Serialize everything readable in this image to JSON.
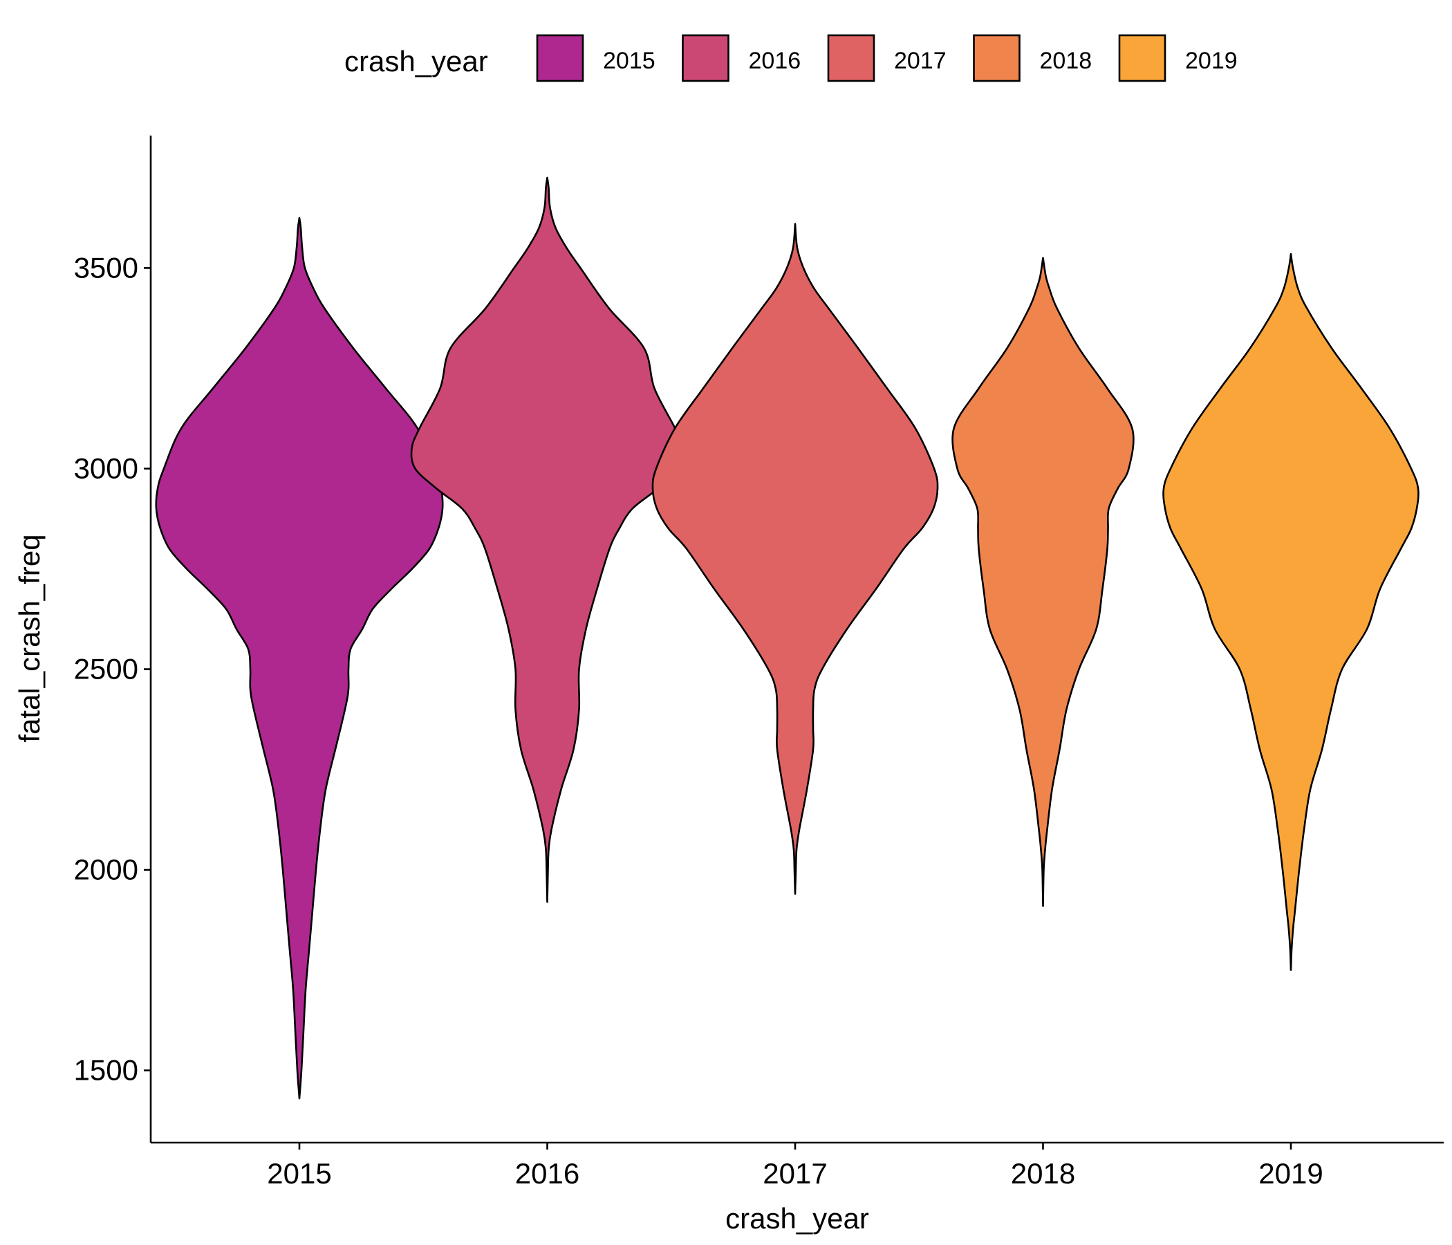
{
  "chart_data": {
    "type": "violin",
    "xlabel": "crash_year",
    "ylabel": "fatal_crash_freq",
    "categories": [
      "2015",
      "2016",
      "2017",
      "2018",
      "2019"
    ],
    "ylim": [
      1320,
      3830
    ],
    "yticks": [
      1500,
      2000,
      2500,
      3000,
      3500
    ],
    "grid": false,
    "legend": {
      "title": "crash_year",
      "position": "top",
      "entries": [
        "2015",
        "2016",
        "2017",
        "2018",
        "2019"
      ]
    },
    "colors": [
      "#ae2890",
      "#cb4875",
      "#e06363",
      "#ef844d",
      "#f9a539"
    ],
    "series": [
      {
        "name": "2015",
        "min": 1430,
        "max": 3625,
        "profile": [
          [
            3625,
            0
          ],
          [
            3600,
            2
          ],
          [
            3550,
            4
          ],
          [
            3500,
            8
          ],
          [
            3450,
            20
          ],
          [
            3400,
            36
          ],
          [
            3300,
            78
          ],
          [
            3200,
            125
          ],
          [
            3100,
            171
          ],
          [
            3000,
            196
          ],
          [
            2950,
            205
          ],
          [
            2900,
            207
          ],
          [
            2850,
            201
          ],
          [
            2800,
            188
          ],
          [
            2750,
            163
          ],
          [
            2700,
            133
          ],
          [
            2650,
            106
          ],
          [
            2600,
            91
          ],
          [
            2550,
            74
          ],
          [
            2500,
            71
          ],
          [
            2450,
            71
          ],
          [
            2400,
            66
          ],
          [
            2300,
            52
          ],
          [
            2200,
            38
          ],
          [
            2100,
            30
          ],
          [
            2000,
            24
          ],
          [
            1900,
            19
          ],
          [
            1800,
            14
          ],
          [
            1700,
            9
          ],
          [
            1600,
            6
          ],
          [
            1500,
            3
          ],
          [
            1430,
            0
          ]
        ]
      },
      {
        "name": "2016",
        "min": 1920,
        "max": 3725,
        "profile": [
          [
            3725,
            0
          ],
          [
            3700,
            2
          ],
          [
            3650,
            4
          ],
          [
            3600,
            12
          ],
          [
            3550,
            28
          ],
          [
            3500,
            48
          ],
          [
            3400,
            89
          ],
          [
            3300,
            140
          ],
          [
            3200,
            155
          ],
          [
            3100,
            185
          ],
          [
            3050,
            196
          ],
          [
            3000,
            191
          ],
          [
            2950,
            160
          ],
          [
            2900,
            123
          ],
          [
            2850,
            104
          ],
          [
            2800,
            90
          ],
          [
            2700,
            72
          ],
          [
            2600,
            56
          ],
          [
            2500,
            46
          ],
          [
            2400,
            46
          ],
          [
            2300,
            38
          ],
          [
            2200,
            20
          ],
          [
            2100,
            6
          ],
          [
            2050,
            2
          ],
          [
            2000,
            1
          ],
          [
            1920,
            0
          ]
        ]
      },
      {
        "name": "2017",
        "min": 1940,
        "max": 3610,
        "profile": [
          [
            3610,
            0
          ],
          [
            3550,
            3
          ],
          [
            3500,
            12
          ],
          [
            3450,
            27
          ],
          [
            3400,
            48
          ],
          [
            3300,
            91
          ],
          [
            3200,
            133
          ],
          [
            3100,
            174
          ],
          [
            3000,
            201
          ],
          [
            2950,
            206
          ],
          [
            2900,
            200
          ],
          [
            2850,
            183
          ],
          [
            2800,
            157
          ],
          [
            2700,
            117
          ],
          [
            2600,
            75
          ],
          [
            2500,
            39
          ],
          [
            2450,
            28
          ],
          [
            2400,
            26
          ],
          [
            2350,
            26
          ],
          [
            2300,
            26
          ],
          [
            2200,
            17
          ],
          [
            2100,
            6
          ],
          [
            2050,
            2
          ],
          [
            2000,
            1
          ],
          [
            1940,
            0
          ]
        ]
      },
      {
        "name": "2018",
        "min": 1910,
        "max": 3525,
        "profile": [
          [
            3525,
            0
          ],
          [
            3480,
            4
          ],
          [
            3450,
            9
          ],
          [
            3400,
            20
          ],
          [
            3300,
            52
          ],
          [
            3200,
            93
          ],
          [
            3100,
            129
          ],
          [
            3000,
            124
          ],
          [
            2950,
            108
          ],
          [
            2900,
            95
          ],
          [
            2850,
            94
          ],
          [
            2800,
            93
          ],
          [
            2700,
            86
          ],
          [
            2600,
            77
          ],
          [
            2500,
            52
          ],
          [
            2400,
            34
          ],
          [
            2300,
            24
          ],
          [
            2200,
            13
          ],
          [
            2100,
            6
          ],
          [
            2050,
            3
          ],
          [
            2000,
            1
          ],
          [
            1910,
            0
          ]
        ]
      },
      {
        "name": "2019",
        "min": 1750,
        "max": 3535,
        "profile": [
          [
            3535,
            0
          ],
          [
            3500,
            3
          ],
          [
            3450,
            10
          ],
          [
            3400,
            23
          ],
          [
            3300,
            59
          ],
          [
            3200,
            102
          ],
          [
            3100,
            143
          ],
          [
            3000,
            174
          ],
          [
            2950,
            184
          ],
          [
            2900,
            182
          ],
          [
            2850,
            174
          ],
          [
            2800,
            159
          ],
          [
            2700,
            129
          ],
          [
            2600,
            110
          ],
          [
            2500,
            74
          ],
          [
            2400,
            58
          ],
          [
            2300,
            45
          ],
          [
            2200,
            28
          ],
          [
            2100,
            19
          ],
          [
            2000,
            12
          ],
          [
            1900,
            6
          ],
          [
            1850,
            3
          ],
          [
            1800,
            1
          ],
          [
            1750,
            0
          ]
        ]
      }
    ]
  }
}
